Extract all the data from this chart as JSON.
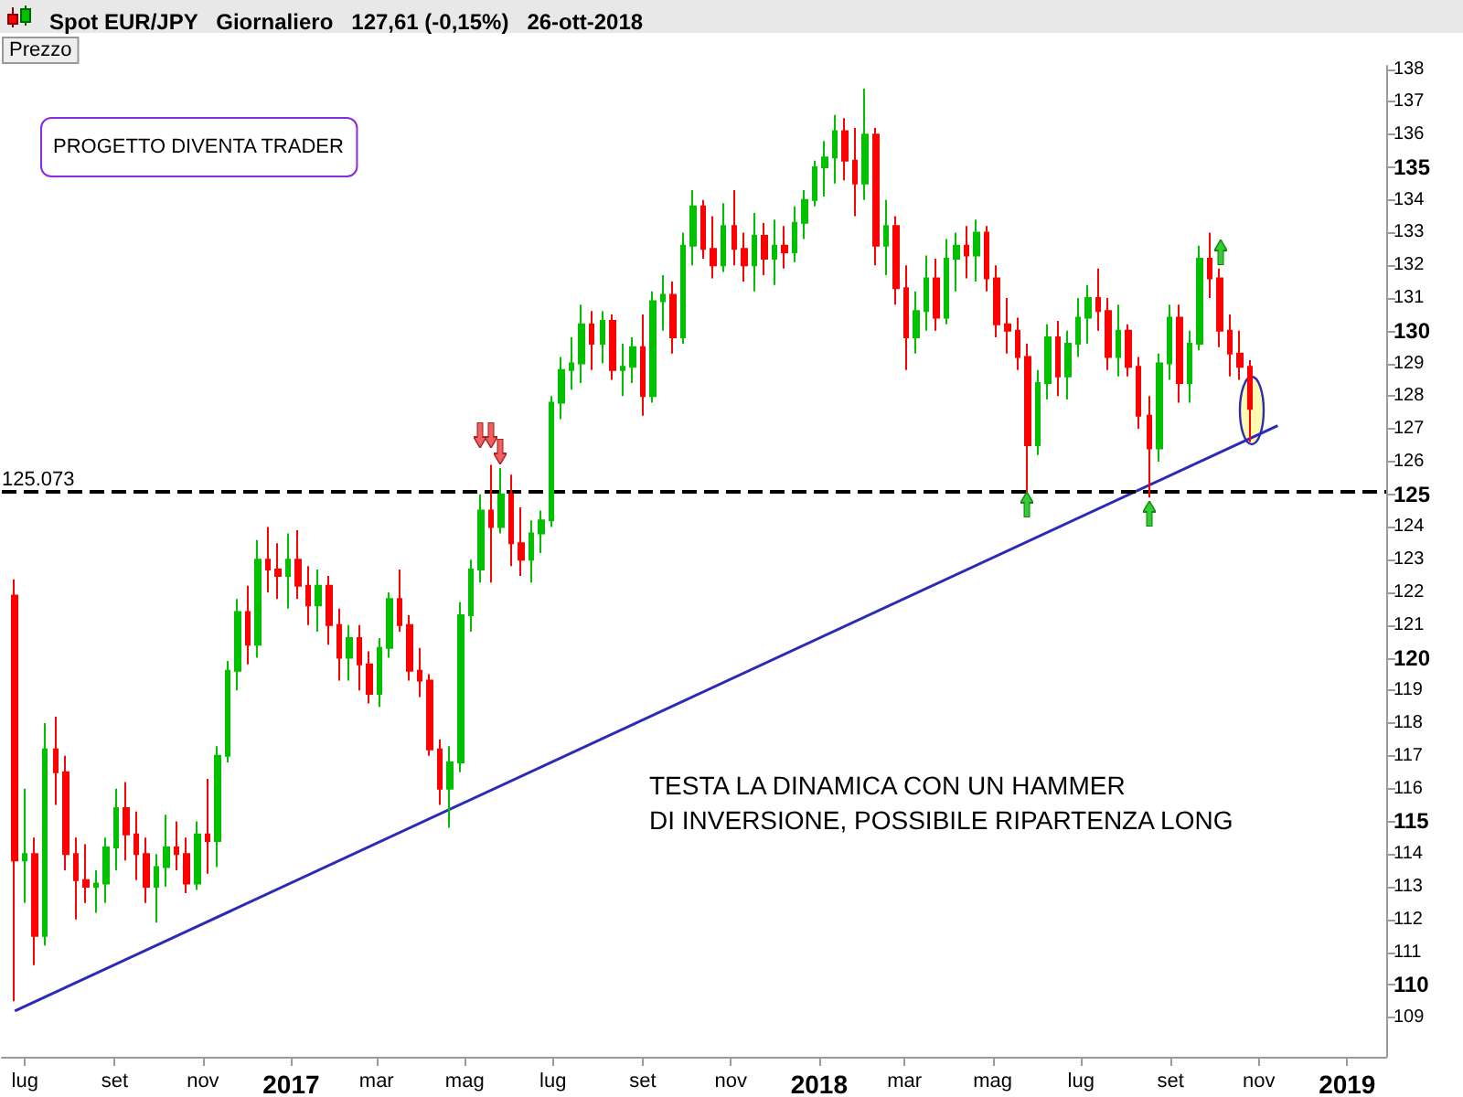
{
  "chart_data": {
    "type": "candlestick",
    "title": "Spot EUR/JPY   Giornaliero   127,61 (-0,15%)   26-ott-2018",
    "ylabel": "Prezzo",
    "x": [
      "2016-06-24",
      "2016-07-01",
      "2016-07-08",
      "2016-07-15",
      "2016-07-22",
      "2016-07-29",
      "2016-08-05",
      "2016-08-12",
      "2016-08-19",
      "2016-08-26",
      "2016-09-02",
      "2016-09-09",
      "2016-09-16",
      "2016-09-23",
      "2016-09-30",
      "2016-10-07",
      "2016-10-14",
      "2016-10-21",
      "2016-10-28",
      "2016-11-04",
      "2016-11-11",
      "2016-11-18",
      "2016-11-25",
      "2016-12-02",
      "2016-12-09",
      "2016-12-16",
      "2016-12-23",
      "2016-12-30",
      "2017-01-06",
      "2017-01-13",
      "2017-01-20",
      "2017-01-27",
      "2017-02-03",
      "2017-02-10",
      "2017-02-17",
      "2017-02-24",
      "2017-03-03",
      "2017-03-10",
      "2017-03-17",
      "2017-03-24",
      "2017-03-31",
      "2017-04-07",
      "2017-04-14",
      "2017-04-21",
      "2017-04-28",
      "2017-05-05",
      "2017-05-12",
      "2017-05-19",
      "2017-05-26",
      "2017-06-02",
      "2017-06-09",
      "2017-06-16",
      "2017-06-23",
      "2017-06-30",
      "2017-07-07",
      "2017-07-14",
      "2017-07-21",
      "2017-07-28",
      "2017-08-04",
      "2017-08-11",
      "2017-08-18",
      "2017-08-25",
      "2017-09-01",
      "2017-09-08",
      "2017-09-15",
      "2017-09-22",
      "2017-09-29",
      "2017-10-06",
      "2017-10-13",
      "2017-10-20",
      "2017-10-27",
      "2017-11-03",
      "2017-11-10",
      "2017-11-17",
      "2017-11-24",
      "2017-12-01",
      "2017-12-08",
      "2017-12-15",
      "2017-12-22",
      "2017-12-29",
      "2018-01-05",
      "2018-01-12",
      "2018-01-19",
      "2018-01-26",
      "2018-02-02",
      "2018-02-09",
      "2018-02-16",
      "2018-02-23",
      "2018-03-02",
      "2018-03-09",
      "2018-03-16",
      "2018-03-23",
      "2018-03-30",
      "2018-04-06",
      "2018-04-13",
      "2018-04-20",
      "2018-04-27",
      "2018-05-04",
      "2018-05-11",
      "2018-05-18",
      "2018-05-25",
      "2018-06-01",
      "2018-06-08",
      "2018-06-15",
      "2018-06-22",
      "2018-06-29",
      "2018-07-06",
      "2018-07-13",
      "2018-07-20",
      "2018-07-27",
      "2018-08-03",
      "2018-08-10",
      "2018-08-17",
      "2018-08-24",
      "2018-08-31",
      "2018-09-07",
      "2018-09-14",
      "2018-09-21",
      "2018-09-28",
      "2018-10-05",
      "2018-10-12",
      "2018-10-19",
      "2018-10-26"
    ],
    "ohlc": [
      [
        121.9,
        122.4,
        109.5,
        113.8
      ],
      [
        113.8,
        116.0,
        112.5,
        114.0
      ],
      [
        114.0,
        114.5,
        110.6,
        111.5
      ],
      [
        111.5,
        118.0,
        111.2,
        117.2
      ],
      [
        117.2,
        118.2,
        115.5,
        116.5
      ],
      [
        116.5,
        117.0,
        113.5,
        114.0
      ],
      [
        114.0,
        114.5,
        112.0,
        113.2
      ],
      [
        113.2,
        114.3,
        112.5,
        113.0
      ],
      [
        113.0,
        113.5,
        112.2,
        113.1
      ],
      [
        113.1,
        114.5,
        112.5,
        114.2
      ],
      [
        114.2,
        116.0,
        113.5,
        115.4
      ],
      [
        115.4,
        116.2,
        113.8,
        114.6
      ],
      [
        114.6,
        115.3,
        113.2,
        114.0
      ],
      [
        114.0,
        114.5,
        112.5,
        113.0
      ],
      [
        113.0,
        114.0,
        111.9,
        113.6
      ],
      [
        113.6,
        115.2,
        113.0,
        114.2
      ],
      [
        114.2,
        115.0,
        113.5,
        114.0
      ],
      [
        114.0,
        114.5,
        112.8,
        113.1
      ],
      [
        113.1,
        115.0,
        112.9,
        114.6
      ],
      [
        114.6,
        116.3,
        113.4,
        114.4
      ],
      [
        114.4,
        117.3,
        113.6,
        117.0
      ],
      [
        117.0,
        119.9,
        116.8,
        119.6
      ],
      [
        119.6,
        121.8,
        119.0,
        121.4
      ],
      [
        121.4,
        122.2,
        119.8,
        120.4
      ],
      [
        120.4,
        123.6,
        120.0,
        123.0
      ],
      [
        123.0,
        124.0,
        122.0,
        122.7
      ],
      [
        122.7,
        123.5,
        121.8,
        122.5
      ],
      [
        122.5,
        123.8,
        121.5,
        123.0
      ],
      [
        123.0,
        123.9,
        121.8,
        122.2
      ],
      [
        122.2,
        122.8,
        121.0,
        121.6
      ],
      [
        121.6,
        122.7,
        120.8,
        122.2
      ],
      [
        122.2,
        122.5,
        120.4,
        121.0
      ],
      [
        121.0,
        121.5,
        119.3,
        120.0
      ],
      [
        120.0,
        121.0,
        119.3,
        120.6
      ],
      [
        120.6,
        121.0,
        119.0,
        119.8
      ],
      [
        119.8,
        120.2,
        118.6,
        118.9
      ],
      [
        118.9,
        120.6,
        118.5,
        120.3
      ],
      [
        120.3,
        122.0,
        120.0,
        121.8
      ],
      [
        121.8,
        122.7,
        120.8,
        121.0
      ],
      [
        121.0,
        121.3,
        119.3,
        119.6
      ],
      [
        119.6,
        120.3,
        118.8,
        119.3
      ],
      [
        119.3,
        119.5,
        117.0,
        117.2
      ],
      [
        117.2,
        117.5,
        115.5,
        116.0
      ],
      [
        116.0,
        117.3,
        114.8,
        116.8
      ],
      [
        116.8,
        121.7,
        116.5,
        121.3
      ],
      [
        121.3,
        123.0,
        120.8,
        122.7
      ],
      [
        122.7,
        125.0,
        122.3,
        124.5
      ],
      [
        124.5,
        125.9,
        122.3,
        124.0
      ],
      [
        124.0,
        125.8,
        123.8,
        125.0
      ],
      [
        125.0,
        125.6,
        122.8,
        123.5
      ],
      [
        123.5,
        124.6,
        122.5,
        123.0
      ],
      [
        123.0,
        124.2,
        122.3,
        123.8
      ],
      [
        123.8,
        124.5,
        123.2,
        124.2
      ],
      [
        124.2,
        128.0,
        124.0,
        127.8
      ],
      [
        127.8,
        129.2,
        127.3,
        128.8
      ],
      [
        128.8,
        129.8,
        128.2,
        129.0
      ],
      [
        129.0,
        130.8,
        128.4,
        130.2
      ],
      [
        130.2,
        130.6,
        128.8,
        129.6
      ],
      [
        129.6,
        130.6,
        129.0,
        130.3
      ],
      [
        130.3,
        130.5,
        128.5,
        128.8
      ],
      [
        128.8,
        129.6,
        128.0,
        128.9
      ],
      [
        128.9,
        129.8,
        128.4,
        129.5
      ],
      [
        129.5,
        130.5,
        127.4,
        128.0
      ],
      [
        128.0,
        131.2,
        127.8,
        130.9
      ],
      [
        130.9,
        131.7,
        130.0,
        131.1
      ],
      [
        131.1,
        131.5,
        129.3,
        129.8
      ],
      [
        129.8,
        133.0,
        129.6,
        132.6
      ],
      [
        132.6,
        134.3,
        132.0,
        133.8
      ],
      [
        133.8,
        134.0,
        132.2,
        132.5
      ],
      [
        132.5,
        133.5,
        131.6,
        132.0
      ],
      [
        132.0,
        133.9,
        131.8,
        133.2
      ],
      [
        133.2,
        134.3,
        132.0,
        132.5
      ],
      [
        132.5,
        133.0,
        131.5,
        132.0
      ],
      [
        132.0,
        133.6,
        131.2,
        132.9
      ],
      [
        132.9,
        133.3,
        131.7,
        132.2
      ],
      [
        132.2,
        133.4,
        131.4,
        132.6
      ],
      [
        132.6,
        133.2,
        131.9,
        132.4
      ],
      [
        132.4,
        133.8,
        132.1,
        133.3
      ],
      [
        133.3,
        134.3,
        132.8,
        134.0
      ],
      [
        134.0,
        135.2,
        133.8,
        135.0
      ],
      [
        135.0,
        135.8,
        134.1,
        135.3
      ],
      [
        135.3,
        136.6,
        134.5,
        136.1
      ],
      [
        136.1,
        136.5,
        134.6,
        135.2
      ],
      [
        135.2,
        136.2,
        133.5,
        134.5
      ],
      [
        134.5,
        137.4,
        134.0,
        136.0
      ],
      [
        136.0,
        136.2,
        132.0,
        132.6
      ],
      [
        132.6,
        134.0,
        131.7,
        133.2
      ],
      [
        133.2,
        133.5,
        130.8,
        131.3
      ],
      [
        131.3,
        132.0,
        128.8,
        129.8
      ],
      [
        129.8,
        131.2,
        129.3,
        130.6
      ],
      [
        130.6,
        132.3,
        130.0,
        131.6
      ],
      [
        131.6,
        132.2,
        130.0,
        130.4
      ],
      [
        130.4,
        132.8,
        130.2,
        132.2
      ],
      [
        132.2,
        133.0,
        131.2,
        132.6
      ],
      [
        132.6,
        133.2,
        131.6,
        132.3
      ],
      [
        132.3,
        133.4,
        131.5,
        133.0
      ],
      [
        133.0,
        133.2,
        131.2,
        131.6
      ],
      [
        131.6,
        132.0,
        129.8,
        130.2
      ],
      [
        130.2,
        131.0,
        129.3,
        130.0
      ],
      [
        130.0,
        130.4,
        128.8,
        129.2
      ],
      [
        129.2,
        129.6,
        125.0,
        126.5
      ],
      [
        126.5,
        128.8,
        126.2,
        128.4
      ],
      [
        128.4,
        130.2,
        127.9,
        129.8
      ],
      [
        129.8,
        130.3,
        128.0,
        128.6
      ],
      [
        128.6,
        130.0,
        127.9,
        129.6
      ],
      [
        129.6,
        131.0,
        129.2,
        130.4
      ],
      [
        130.4,
        131.4,
        129.6,
        131.0
      ],
      [
        131.0,
        131.9,
        130.0,
        130.6
      ],
      [
        130.6,
        131.0,
        128.8,
        129.2
      ],
      [
        129.2,
        130.8,
        128.6,
        130.0
      ],
      [
        130.0,
        130.2,
        128.6,
        128.9
      ],
      [
        128.9,
        129.2,
        127.0,
        127.4
      ],
      [
        127.4,
        128.0,
        124.9,
        126.4
      ],
      [
        126.4,
        129.3,
        126.0,
        129.0
      ],
      [
        129.0,
        130.8,
        128.5,
        130.4
      ],
      [
        130.4,
        130.8,
        127.8,
        128.4
      ],
      [
        128.4,
        130.0,
        127.8,
        129.6
      ],
      [
        129.6,
        132.6,
        129.4,
        132.2
      ],
      [
        132.2,
        133.0,
        131.0,
        131.6
      ],
      [
        131.6,
        131.9,
        129.5,
        130.0
      ],
      [
        130.0,
        130.5,
        128.6,
        129.3
      ],
      [
        129.3,
        130.0,
        128.5,
        128.9
      ],
      [
        128.9,
        129.1,
        126.6,
        127.61
      ]
    ],
    "series": [
      {
        "type": "line",
        "x": [
          "2016-06-24",
          "2018-11-14"
        ],
        "values": [
          109.2,
          127.1
        ],
        "color": "#2b2bb8"
      }
    ],
    "ref_lines": [
      {
        "axis": "y",
        "value": 125.073,
        "label": "125.073",
        "color": "#000000",
        "line_style": "dashed"
      }
    ],
    "annotations": [
      "PROGETTO DIVENTA TRADER",
      "TESTA LA DINAMICA CON UN HAMMER\nDI INVERSIONE, POSSIBILE RIPARTENZA LONG"
    ],
    "xlim": [
      "2016-06-15",
      "2019-01-28"
    ],
    "xticks": [
      {
        "value": "2016-07-01",
        "label": "lug"
      },
      {
        "value": "2016-09-01",
        "label": "set"
      },
      {
        "value": "2016-11-01",
        "label": "nov"
      },
      {
        "value": "2017-01-01",
        "label": "2017"
      },
      {
        "value": "2017-03-01",
        "label": "mar"
      },
      {
        "value": "2017-05-01",
        "label": "mag"
      },
      {
        "value": "2017-07-01",
        "label": "lug"
      },
      {
        "value": "2017-09-01",
        "label": "set"
      },
      {
        "value": "2017-11-01",
        "label": "nov"
      },
      {
        "value": "2018-01-01",
        "label": "2018"
      },
      {
        "value": "2018-03-01",
        "label": "mar"
      },
      {
        "value": "2018-05-01",
        "label": "mag"
      },
      {
        "value": "2018-07-01",
        "label": "lug"
      },
      {
        "value": "2018-09-01",
        "label": "set"
      },
      {
        "value": "2018-11-01",
        "label": "nov"
      },
      {
        "value": "2019-01-01",
        "label": "2019"
      }
    ],
    "ylim": [
      107.8,
      138.1
    ],
    "yticks": [
      109,
      110,
      111,
      112,
      113,
      114,
      115,
      116,
      117,
      118,
      119,
      120,
      121,
      122,
      123,
      124,
      125,
      126,
      127,
      128,
      129,
      130,
      131,
      132,
      133,
      134,
      135,
      136,
      137,
      138
    ]
  }
}
